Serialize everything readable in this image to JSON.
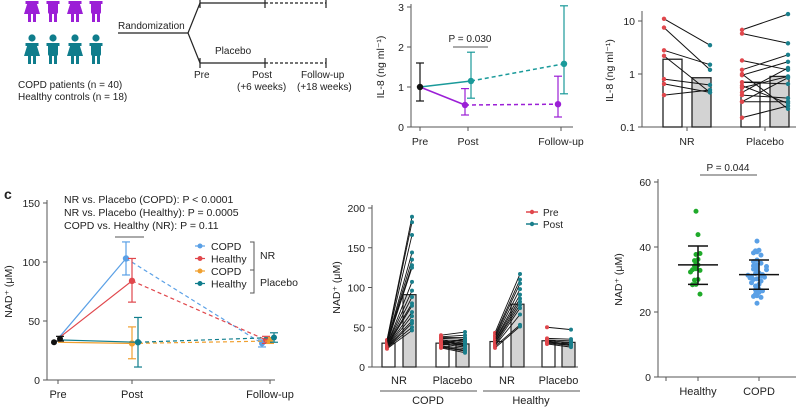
{
  "panel_a": {
    "randomization": "Randomization",
    "placebo": "Placebo",
    "timepoints": [
      "Pre",
      "Post",
      "Follow-up"
    ],
    "timepoint_notes": [
      "",
      "(+6 weeks)",
      "(+18 weeks)"
    ],
    "copd_line": "COPD patients (n = 40)",
    "healthy_line": "Healthy controls (n = 18)",
    "colors": {
      "copd": "#9b1fd6",
      "healthy": "#0f7d8c"
    }
  },
  "chart_data": [
    {
      "id": "il8-time",
      "type": "line",
      "ylabel": "IL-8 (ng ml⁻¹)",
      "categories": [
        "Pre",
        "Post",
        "Follow-up"
      ],
      "ylim": [
        0,
        3
      ],
      "yticks": [
        0,
        1,
        2,
        3
      ],
      "annotation": "P = 0.030",
      "baseline": {
        "value": 1.0,
        "err": [
          0.65,
          1.6
        ],
        "color": "#111111"
      },
      "series": [
        {
          "name": "NR",
          "color": "#1a9a9a",
          "values": [
            1.0,
            1.15,
            1.58
          ],
          "err": [
            null,
            [
              0.72,
              1.87
            ],
            [
              0.83,
              3.03
            ]
          ]
        },
        {
          "name": "Placebo",
          "color": "#9b1fd6",
          "values": [
            1.0,
            0.55,
            0.57
          ],
          "err": [
            null,
            [
              0.3,
              0.96
            ],
            [
              0.25,
              1.27
            ]
          ]
        }
      ]
    },
    {
      "id": "il8-paired",
      "type": "bar",
      "scale": "log",
      "ylabel": "IL-8 (ng ml⁻¹)",
      "ylim": [
        0.1,
        20
      ],
      "yticks": [
        0.1,
        1,
        10
      ],
      "ytick_labels": [
        "0.1",
        "1",
        "10"
      ],
      "categories": [
        "NR",
        "Placebo"
      ],
      "series": [
        {
          "name": "Pre",
          "values": [
            1.9,
            0.7
          ],
          "color": "#e0474c"
        },
        {
          "name": "Post",
          "values": [
            0.85,
            0.9
          ],
          "color": "#1a7f8c"
        }
      ],
      "pairs": [
        [
          [
            11,
            3.5
          ],
          [
            7.5,
            1.2
          ],
          [
            2.8,
            1.5
          ],
          [
            2.2,
            0.45
          ],
          [
            0.8,
            0.62
          ],
          [
            0.65,
            0.45
          ],
          [
            0.4,
            0.5
          ]
        ],
        [
          [
            6.8,
            13.5
          ],
          [
            5.8,
            3.8
          ],
          [
            1.8,
            1.2
          ],
          [
            1.2,
            2.3
          ],
          [
            0.95,
            1.7
          ],
          [
            0.7,
            0.65
          ],
          [
            0.55,
            0.9
          ],
          [
            0.45,
            1.3
          ],
          [
            0.4,
            0.35
          ],
          [
            0.3,
            0.3
          ],
          [
            0.15,
            0.25
          ],
          [
            1.0,
            0.22
          ],
          [
            0.3,
            0.85
          ],
          [
            0.6,
            0.28
          ]
        ]
      ]
    },
    {
      "id": "nad-time",
      "type": "line",
      "panel_label": "c",
      "ylabel": "NAD⁺ (μM)",
      "categories": [
        "Pre",
        "Post",
        "Follow-up"
      ],
      "ylim": [
        0,
        150
      ],
      "yticks": [
        0,
        50,
        100,
        150
      ],
      "annotations": [
        "NR vs. Placebo (COPD): P < 0.0001",
        "NR vs. Placebo (Healthy): P = 0.0005",
        "COPD vs. Healthy (NR): P = 0.11"
      ],
      "legend": {
        "groups": [
          "NR",
          "Placebo"
        ],
        "position": "right"
      },
      "baseline": [
        {
          "value": 32,
          "color": "#111111"
        },
        {
          "value": 35,
          "err": [
            33,
            37
          ],
          "color": "#111111"
        }
      ],
      "series": [
        {
          "name": "COPD",
          "group": "NR",
          "color": "#5aa0e6",
          "values": [
            35,
            103,
            31
          ],
          "err": [
            null,
            [
              89,
              117
            ],
            [
              28,
              34
            ]
          ]
        },
        {
          "name": "Healthy",
          "group": "NR",
          "color": "#e0474c",
          "values": [
            35,
            84,
            34
          ],
          "err": [
            null,
            [
              66,
              103
            ],
            [
              31,
              37
            ]
          ]
        },
        {
          "name": "COPD",
          "group": "Placebo",
          "color": "#f0a030",
          "values": [
            32,
            31,
            33
          ],
          "err": [
            null,
            [
              18,
              45
            ],
            [
              31,
              36
            ]
          ]
        },
        {
          "name": "Healthy",
          "group": "Placebo",
          "color": "#0f7d8c",
          "values": [
            34,
            32,
            36
          ],
          "err": [
            null,
            [
              11,
              53
            ],
            [
              32,
              40
            ]
          ]
        }
      ]
    },
    {
      "id": "nad-paired",
      "type": "bar",
      "ylabel": "NAD⁺ (μM)",
      "ylim": [
        0,
        200
      ],
      "yticks": [
        0,
        50,
        100,
        150,
        200
      ],
      "groups": [
        "COPD",
        "Healthy"
      ],
      "categories": [
        "NR",
        "Placebo",
        "NR",
        "Placebo"
      ],
      "legend": [
        "Pre",
        "Post"
      ],
      "series": [
        {
          "name": "Pre",
          "values": [
            30,
            30,
            32,
            33
          ],
          "color": "#e0474c"
        },
        {
          "name": "Post",
          "values": [
            91,
            29,
            79,
            31
          ],
          "color": "#1a7f8c"
        }
      ],
      "pairs": [
        [
          [
            34,
            189
          ],
          [
            33,
            182
          ],
          [
            32,
            166
          ],
          [
            31,
            144
          ],
          [
            30,
            135
          ],
          [
            30,
            128
          ],
          [
            29,
            125
          ],
          [
            28,
            107
          ],
          [
            28,
            96
          ],
          [
            27,
            88
          ],
          [
            27,
            80
          ],
          [
            26,
            77
          ],
          [
            26,
            69
          ],
          [
            25,
            64
          ],
          [
            25,
            58
          ],
          [
            24,
            55
          ],
          [
            24,
            50
          ],
          [
            23,
            46
          ]
        ],
        [
          [
            40,
            44
          ],
          [
            38,
            40
          ],
          [
            37,
            37
          ],
          [
            36,
            35
          ],
          [
            34,
            33
          ],
          [
            33,
            30
          ],
          [
            32,
            28
          ],
          [
            31,
            32
          ],
          [
            30,
            27
          ],
          [
            29,
            25
          ],
          [
            28,
            30
          ],
          [
            27,
            23
          ],
          [
            26,
            21
          ],
          [
            25,
            20
          ],
          [
            24,
            18
          ],
          [
            35,
            26
          ],
          [
            30,
            35
          ]
        ],
        [
          [
            43,
            117
          ],
          [
            40,
            110
          ],
          [
            38,
            105
          ],
          [
            36,
            98
          ],
          [
            34,
            91
          ],
          [
            33,
            86
          ],
          [
            31,
            82
          ],
          [
            30,
            78
          ],
          [
            28,
            74
          ],
          [
            27,
            66
          ],
          [
            26,
            53
          ],
          [
            24,
            51
          ]
        ],
        [
          [
            50,
            47
          ],
          [
            36,
            35
          ],
          [
            34,
            33
          ],
          [
            33,
            31
          ],
          [
            32,
            29
          ],
          [
            31,
            28
          ],
          [
            30,
            27
          ],
          [
            29,
            25
          ]
        ]
      ]
    },
    {
      "id": "nad-baseline",
      "type": "scatter",
      "ylabel": "NAD⁺ (μM)",
      "ylim": [
        0,
        60
      ],
      "yticks": [
        0,
        20,
        40,
        60
      ],
      "categories": [
        "Healthy",
        "COPD"
      ],
      "annotation": "P = 0.044",
      "series": [
        {
          "name": "Healthy",
          "color": "#1faa2a",
          "mean": 34.5,
          "sd": [
            28.5,
            40.3
          ],
          "values": [
            51,
            43.8,
            38,
            37.7,
            36.2,
            35.8,
            35.2,
            34.5,
            34.2,
            33.3,
            33,
            32.8,
            32.3,
            30,
            29.8,
            28.5,
            28.4,
            25.5
          ]
        },
        {
          "name": "COPD",
          "color": "#5aa0e6",
          "mean": 31.5,
          "sd": [
            27,
            36
          ],
          "values": [
            41.8,
            39,
            38.8,
            38.5,
            38.2,
            37.5,
            36,
            35.5,
            35,
            34.5,
            34.2,
            34,
            33.5,
            33.2,
            33,
            32.5,
            32,
            31.8,
            31.5,
            31.3,
            31,
            31,
            30.7,
            30.5,
            30.2,
            30,
            29.5,
            29,
            28.5,
            28,
            27.5,
            27,
            26.8,
            26.5,
            26,
            25.5,
            25,
            24.8,
            24.5,
            22.7
          ]
        }
      ]
    }
  ]
}
